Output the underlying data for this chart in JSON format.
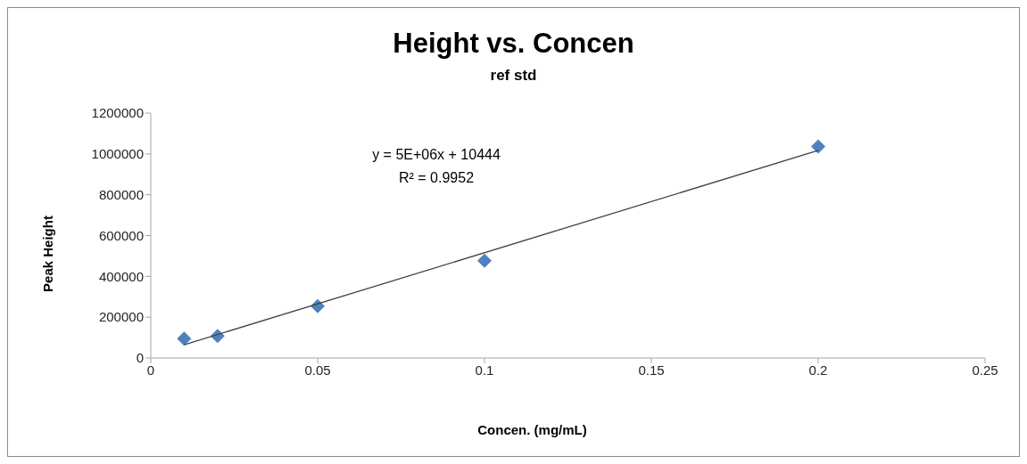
{
  "chart_data": {
    "type": "scatter",
    "title": "Height vs. Concen",
    "subtitle": "ref std",
    "xlabel": "Concen. (mg/mL)",
    "ylabel": "Peak Height",
    "annotations": [
      "y = 5E+06x + 10444",
      "R² = 0.9952"
    ],
    "series": [
      {
        "color": "#4f81bd",
        "marker": "diamond",
        "x": [
          0.01,
          0.02,
          0.05,
          0.1,
          0.2
        ],
        "values": [
          95000,
          108000,
          254000,
          477000,
          1036000
        ]
      },
      {
        "type": "line",
        "color": "#404040",
        "marker": "none",
        "x": [
          0.01,
          0.2
        ],
        "values": [
          65000,
          1017000
        ]
      }
    ],
    "xlim": [
      0,
      0.25
    ],
    "xticks": [
      0,
      0.05,
      0.1,
      0.15,
      0.2,
      0.25
    ],
    "ylim": [
      0,
      1200000
    ],
    "yticks": [
      0,
      200000,
      400000,
      600000,
      800000,
      1000000,
      1200000
    ],
    "grid": false
  }
}
